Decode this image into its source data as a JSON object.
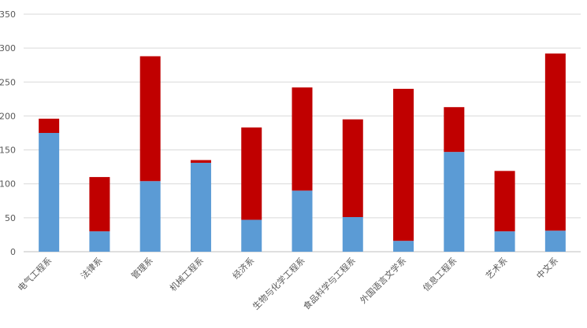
{
  "chart_data": {
    "type": "bar",
    "stacked": true,
    "categories": [
      "电气工程系",
      "法律系",
      "管理系",
      "机械工程系",
      "经济系",
      "生物与化学工程系",
      "食品科学与工程系",
      "外国语言文学系",
      "信息工程系",
      "艺术系",
      "中文系"
    ],
    "series": [
      {
        "values": [
          175,
          30,
          104,
          131,
          47,
          90,
          51,
          16,
          147,
          30,
          31
        ],
        "color": "#5b9bd5"
      },
      {
        "values": [
          21,
          80,
          184,
          4,
          136,
          152,
          144,
          224,
          66,
          89,
          261
        ],
        "color": "#c00000"
      }
    ],
    "ylim": [
      0,
      350
    ],
    "yticks": [
      0,
      50,
      100,
      150,
      200,
      250,
      300,
      350
    ],
    "grid": true,
    "legend": "none",
    "title": "",
    "xlabel": "",
    "ylabel": ""
  }
}
